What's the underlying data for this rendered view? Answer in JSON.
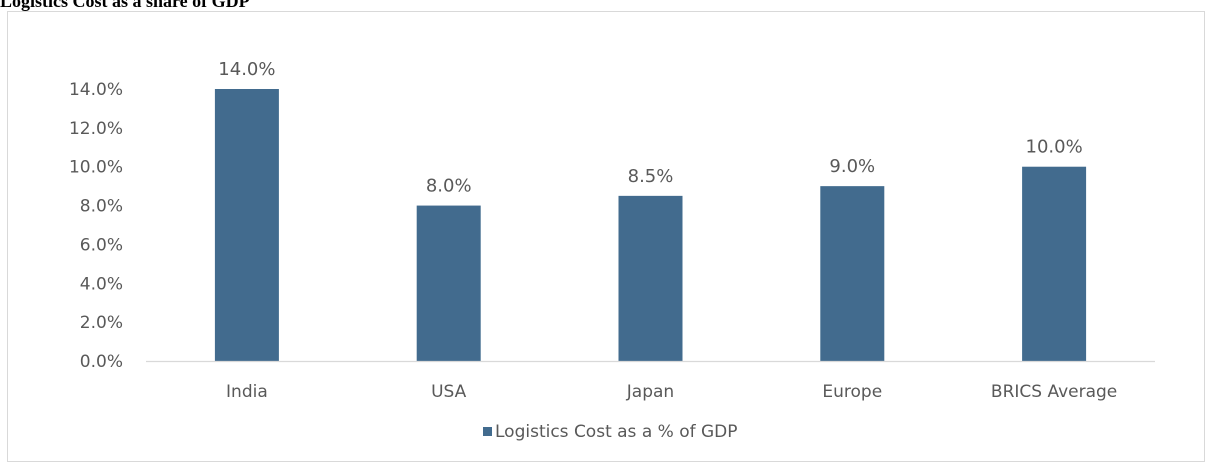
{
  "page_title": "Logistics Cost as a share of GDP",
  "chart_data": {
    "type": "bar",
    "title": "",
    "xlabel": "",
    "ylabel": "",
    "categories": [
      "India",
      "USA",
      "Japan",
      "Europe",
      "BRICS Average"
    ],
    "series": [
      {
        "name": "Logistics Cost as a % of GDP",
        "values": [
          14.0,
          8.0,
          8.5,
          9.0,
          10.0
        ],
        "color": "#426b8e"
      }
    ],
    "y_ticks": [
      0,
      2,
      4,
      6,
      8,
      10,
      12,
      14
    ],
    "y_tick_labels": [
      "0.0%",
      "2.0%",
      "4.0%",
      "6.0%",
      "8.0%",
      "10.0%",
      "12.0%",
      "14.0%"
    ],
    "data_labels": [
      "14.0%",
      "8.0%",
      "8.5%",
      "9.0%",
      "10.0%"
    ],
    "ylim": [
      0,
      14
    ],
    "grid": false,
    "legend_position": "bottom",
    "axis_color": "#d9d9d9"
  }
}
